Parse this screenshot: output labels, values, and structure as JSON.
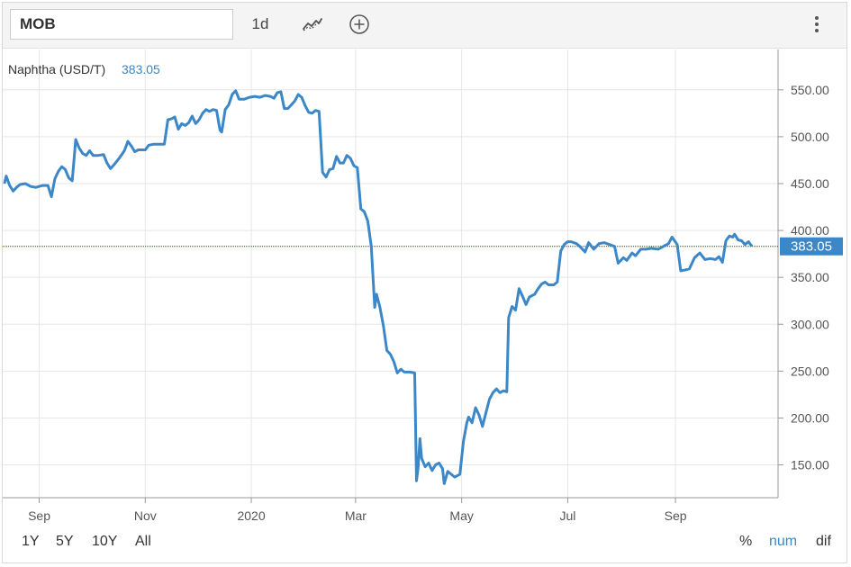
{
  "toolbar": {
    "symbol": "MOB",
    "interval": "1d",
    "chart_type_icon": "line-chart-icon",
    "add_icon": "circle-plus-icon",
    "menu_icon": "vertical-dots-icon"
  },
  "legend": {
    "label": "Naphtha (USD/T)",
    "value": "383.05"
  },
  "price_tag": "383.05",
  "ranges": [
    "1Y",
    "5Y",
    "10Y",
    "All"
  ],
  "modes": [
    {
      "label": "%",
      "active": false
    },
    {
      "label": "num",
      "active": true
    },
    {
      "label": "dif",
      "active": false
    }
  ],
  "colors": {
    "line": "#3b87c8",
    "tag": "#3b87c8",
    "current_line": "#3333aa",
    "grid": "#e6e6e6",
    "mode_active": "#3b87c8"
  },
  "chart_data": {
    "type": "line",
    "title": "",
    "xlabel": "",
    "ylabel": "",
    "ylim": [
      115,
      593
    ],
    "yticks": [
      150,
      200,
      250,
      300,
      350,
      400,
      450,
      500,
      550
    ],
    "ytick_labels": [
      "150.00",
      "200.00",
      "250.00",
      "300.00",
      "350.00",
      "400.00",
      "450.00",
      "500.00",
      "550.00"
    ],
    "xlim": [
      "2019-08-11",
      "2020-10-30"
    ],
    "xticks": [
      "2019-09-01",
      "2019-11-01",
      "2020-01-01",
      "2020-03-01",
      "2020-05-01",
      "2020-07-01",
      "2020-09-01"
    ],
    "xtick_labels": [
      "Sep",
      "Nov",
      "2020",
      "Mar",
      "May",
      "Jul",
      "Sep"
    ],
    "current_value": 383.05,
    "grid": true,
    "series": [
      {
        "values": [
          [
            "2019-08-12",
            450
          ],
          [
            "2019-08-13",
            458
          ],
          [
            "2019-08-15",
            448
          ],
          [
            "2019-08-17",
            442
          ],
          [
            "2019-08-19",
            446
          ],
          [
            "2019-08-21",
            449
          ],
          [
            "2019-08-24",
            450
          ],
          [
            "2019-08-27",
            447
          ],
          [
            "2019-08-30",
            446
          ],
          [
            "2019-09-03",
            448
          ],
          [
            "2019-09-06",
            448
          ],
          [
            "2019-09-08",
            436
          ],
          [
            "2019-09-10",
            455
          ],
          [
            "2019-09-12",
            463
          ],
          [
            "2019-09-14",
            468
          ],
          [
            "2019-09-16",
            465
          ],
          [
            "2019-09-18",
            456
          ],
          [
            "2019-09-20",
            453
          ],
          [
            "2019-09-22",
            497
          ],
          [
            "2019-09-24",
            488
          ],
          [
            "2019-09-26",
            482
          ],
          [
            "2019-09-28",
            480
          ],
          [
            "2019-09-30",
            485
          ],
          [
            "2019-10-02",
            480
          ],
          [
            "2019-10-05",
            480
          ],
          [
            "2019-10-08",
            481
          ],
          [
            "2019-10-10",
            472
          ],
          [
            "2019-10-12",
            466
          ],
          [
            "2019-10-14",
            470
          ],
          [
            "2019-10-17",
            477
          ],
          [
            "2019-10-20",
            485
          ],
          [
            "2019-10-22",
            495
          ],
          [
            "2019-10-24",
            490
          ],
          [
            "2019-10-26",
            484
          ],
          [
            "2019-10-28",
            486
          ],
          [
            "2019-10-30",
            486
          ],
          [
            "2019-11-01",
            486
          ],
          [
            "2019-11-03",
            491
          ],
          [
            "2019-11-06",
            492
          ],
          [
            "2019-11-09",
            492
          ],
          [
            "2019-11-12",
            492
          ],
          [
            "2019-11-14",
            518
          ],
          [
            "2019-11-16",
            519
          ],
          [
            "2019-11-18",
            521
          ],
          [
            "2019-11-20",
            508
          ],
          [
            "2019-11-22",
            514
          ],
          [
            "2019-11-24",
            512
          ],
          [
            "2019-11-26",
            515
          ],
          [
            "2019-11-28",
            522
          ],
          [
            "2019-11-30",
            514
          ],
          [
            "2019-12-02",
            518
          ],
          [
            "2019-12-04",
            525
          ],
          [
            "2019-12-06",
            529
          ],
          [
            "2019-12-08",
            527
          ],
          [
            "2019-12-10",
            529
          ],
          [
            "2019-12-12",
            528
          ],
          [
            "2019-12-14",
            507
          ],
          [
            "2019-12-15",
            505
          ],
          [
            "2019-12-17",
            529
          ],
          [
            "2019-12-19",
            534
          ],
          [
            "2019-12-21",
            545
          ],
          [
            "2019-12-23",
            549
          ],
          [
            "2019-12-25",
            540
          ],
          [
            "2019-12-28",
            540
          ],
          [
            "2019-12-31",
            542
          ],
          [
            "2020-01-03",
            543
          ],
          [
            "2020-01-06",
            542
          ],
          [
            "2020-01-09",
            544
          ],
          [
            "2020-01-12",
            543
          ],
          [
            "2020-01-14",
            541
          ],
          [
            "2020-01-16",
            547
          ],
          [
            "2020-01-18",
            548
          ],
          [
            "2020-01-20",
            530
          ],
          [
            "2020-01-22",
            530
          ],
          [
            "2020-01-24",
            534
          ],
          [
            "2020-01-26",
            538
          ],
          [
            "2020-01-28",
            545
          ],
          [
            "2020-01-30",
            542
          ],
          [
            "2020-02-01",
            533
          ],
          [
            "2020-02-03",
            526
          ],
          [
            "2020-02-05",
            525
          ],
          [
            "2020-02-07",
            528
          ],
          [
            "2020-02-09",
            527
          ],
          [
            "2020-02-11",
            462
          ],
          [
            "2020-02-13",
            457
          ],
          [
            "2020-02-15",
            465
          ],
          [
            "2020-02-17",
            466
          ],
          [
            "2020-02-19",
            479
          ],
          [
            "2020-02-21",
            472
          ],
          [
            "2020-02-23",
            472
          ],
          [
            "2020-02-25",
            480
          ],
          [
            "2020-02-27",
            477
          ],
          [
            "2020-02-29",
            469
          ],
          [
            "2020-03-02",
            467
          ],
          [
            "2020-03-04",
            423
          ],
          [
            "2020-03-06",
            420
          ],
          [
            "2020-03-08",
            410
          ],
          [
            "2020-03-10",
            383
          ],
          [
            "2020-03-12",
            318
          ],
          [
            "2020-03-13",
            332
          ],
          [
            "2020-03-15",
            318
          ],
          [
            "2020-03-17",
            298
          ],
          [
            "2020-03-19",
            272
          ],
          [
            "2020-03-21",
            268
          ],
          [
            "2020-03-23",
            260
          ],
          [
            "2020-03-25",
            248
          ],
          [
            "2020-03-27",
            252
          ],
          [
            "2020-03-29",
            249
          ],
          [
            "2020-04-01",
            249
          ],
          [
            "2020-04-04",
            248
          ],
          [
            "2020-04-05",
            133
          ],
          [
            "2020-04-06",
            148
          ],
          [
            "2020-04-07",
            178
          ],
          [
            "2020-04-08",
            157
          ],
          [
            "2020-04-10",
            148
          ],
          [
            "2020-04-12",
            152
          ],
          [
            "2020-04-14",
            144
          ],
          [
            "2020-04-16",
            150
          ],
          [
            "2020-04-18",
            152
          ],
          [
            "2020-04-20",
            146
          ],
          [
            "2020-04-21",
            130
          ],
          [
            "2020-04-23",
            143
          ],
          [
            "2020-04-25",
            140
          ],
          [
            "2020-04-27",
            137
          ],
          [
            "2020-04-30",
            140
          ],
          [
            "2020-05-02",
            175
          ],
          [
            "2020-05-04",
            195
          ],
          [
            "2020-05-05",
            201
          ],
          [
            "2020-05-07",
            195
          ],
          [
            "2020-05-09",
            211
          ],
          [
            "2020-05-11",
            203
          ],
          [
            "2020-05-13",
            191
          ],
          [
            "2020-05-15",
            206
          ],
          [
            "2020-05-17",
            220
          ],
          [
            "2020-05-19",
            227
          ],
          [
            "2020-05-21",
            231
          ],
          [
            "2020-05-23",
            227
          ],
          [
            "2020-05-25",
            229
          ],
          [
            "2020-05-27",
            228
          ],
          [
            "2020-05-28",
            307
          ],
          [
            "2020-05-30",
            319
          ],
          [
            "2020-06-01",
            315
          ],
          [
            "2020-06-03",
            338
          ],
          [
            "2020-06-05",
            330
          ],
          [
            "2020-06-07",
            321
          ],
          [
            "2020-06-09",
            329
          ],
          [
            "2020-06-12",
            332
          ],
          [
            "2020-06-14",
            338
          ],
          [
            "2020-06-16",
            343
          ],
          [
            "2020-06-18",
            345
          ],
          [
            "2020-06-20",
            342
          ],
          [
            "2020-06-23",
            342
          ],
          [
            "2020-06-25",
            345
          ],
          [
            "2020-06-27",
            378
          ],
          [
            "2020-06-29",
            385
          ],
          [
            "2020-07-01",
            388
          ],
          [
            "2020-07-03",
            388
          ],
          [
            "2020-07-06",
            386
          ],
          [
            "2020-07-08",
            383
          ],
          [
            "2020-07-11",
            377
          ],
          [
            "2020-07-13",
            387
          ],
          [
            "2020-07-16",
            380
          ],
          [
            "2020-07-19",
            386
          ],
          [
            "2020-07-22",
            387
          ],
          [
            "2020-07-25",
            385
          ],
          [
            "2020-07-28",
            383
          ],
          [
            "2020-07-30",
            365
          ],
          [
            "2020-08-02",
            371
          ],
          [
            "2020-08-04",
            368
          ],
          [
            "2020-08-07",
            376
          ],
          [
            "2020-08-09",
            373
          ],
          [
            "2020-08-12",
            380
          ],
          [
            "2020-08-15",
            380
          ],
          [
            "2020-08-18",
            381
          ],
          [
            "2020-08-22",
            380
          ],
          [
            "2020-08-25",
            383
          ],
          [
            "2020-08-28",
            386
          ],
          [
            "2020-08-30",
            393
          ],
          [
            "2020-09-02",
            385
          ],
          [
            "2020-09-04",
            357
          ],
          [
            "2020-09-07",
            358
          ],
          [
            "2020-09-09",
            359
          ],
          [
            "2020-09-12",
            371
          ],
          [
            "2020-09-15",
            376
          ],
          [
            "2020-09-18",
            369
          ],
          [
            "2020-09-21",
            370
          ],
          [
            "2020-09-24",
            369
          ],
          [
            "2020-09-26",
            372
          ],
          [
            "2020-09-28",
            366
          ],
          [
            "2020-09-30",
            389
          ],
          [
            "2020-10-02",
            394
          ],
          [
            "2020-10-04",
            393
          ],
          [
            "2020-10-05",
            396
          ],
          [
            "2020-10-07",
            390
          ],
          [
            "2020-10-09",
            389
          ],
          [
            "2020-10-11",
            385
          ],
          [
            "2020-10-13",
            388
          ],
          [
            "2020-10-15",
            383.05
          ]
        ]
      }
    ]
  }
}
